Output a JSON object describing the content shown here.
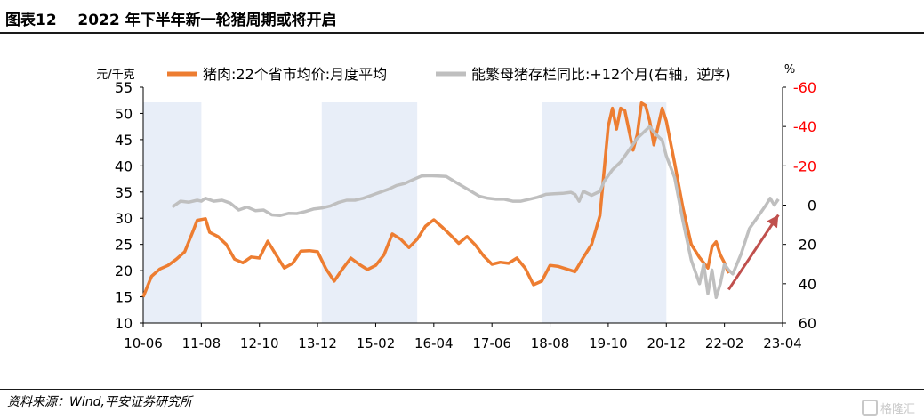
{
  "title": {
    "label": "图表12",
    "text": "2022 年下半年新一轮猪周期或将开启"
  },
  "source": "资料来源：Wind,平安证券研究所",
  "watermark": "格隆汇",
  "colors": {
    "pork": "#ED7D31",
    "sow": "#BFBFBF",
    "shade": "#E8EEF8",
    "arrow": "#C0504D",
    "right_axis": "#FF0000"
  },
  "chart_data": {
    "type": "line",
    "left_axis": {
      "unit": "元/千克",
      "ylim": [
        10,
        55
      ],
      "ticks": [
        10,
        15,
        20,
        25,
        30,
        35,
        40,
        45,
        50,
        55
      ]
    },
    "right_axis": {
      "unit": "%",
      "reversed": true,
      "ylim": [
        -60,
        60
      ],
      "ticks": [
        -60,
        -40,
        -20,
        0,
        20,
        40,
        60
      ],
      "tick_labels": [
        "-60",
        "-40",
        "-20",
        "0",
        "20",
        "40",
        "60"
      ]
    },
    "x_range": [
      "2010-06",
      "2023-04"
    ],
    "x_tick_labels": [
      "10-06",
      "11-08",
      "12-10",
      "13-12",
      "15-02",
      "16-04",
      "17-06",
      "18-08",
      "19-10",
      "20-12",
      "22-02",
      "23-04"
    ],
    "shaded_periods": [
      [
        "2010-06",
        "2011-08"
      ],
      [
        "2014-01",
        "2015-12"
      ],
      [
        "2018-06",
        "2020-12"
      ]
    ],
    "arrow": {
      "from": [
        "2022-03",
        43
      ],
      "to": [
        "2023-03",
        5
      ]
    },
    "series": [
      {
        "name": "猪肉:22个省市均价:月度平均",
        "axis": "left",
        "points": [
          [
            "2010-06",
            15.0
          ],
          [
            "2010-08",
            18.9
          ],
          [
            "2010-10",
            20.3
          ],
          [
            "2010-12",
            21.0
          ],
          [
            "2011-02",
            22.2
          ],
          [
            "2011-04",
            23.6
          ],
          [
            "2011-06",
            27.5
          ],
          [
            "2011-07",
            29.6
          ],
          [
            "2011-09",
            29.9
          ],
          [
            "2011-10",
            27.3
          ],
          [
            "2011-12",
            26.5
          ],
          [
            "2012-02",
            25.0
          ],
          [
            "2012-04",
            22.2
          ],
          [
            "2012-06",
            21.5
          ],
          [
            "2012-08",
            22.6
          ],
          [
            "2012-10",
            22.4
          ],
          [
            "2012-12",
            25.6
          ],
          [
            "2013-02",
            23.0
          ],
          [
            "2013-04",
            20.5
          ],
          [
            "2013-06",
            21.4
          ],
          [
            "2013-08",
            23.7
          ],
          [
            "2013-10",
            23.8
          ],
          [
            "2013-12",
            23.6
          ],
          [
            "2014-02",
            20.4
          ],
          [
            "2014-04",
            18.0
          ],
          [
            "2014-06",
            20.3
          ],
          [
            "2014-08",
            22.4
          ],
          [
            "2014-10",
            21.2
          ],
          [
            "2014-12",
            20.2
          ],
          [
            "2015-02",
            21.0
          ],
          [
            "2015-04",
            23.0
          ],
          [
            "2015-06",
            27.0
          ],
          [
            "2015-08",
            26.0
          ],
          [
            "2015-10",
            24.4
          ],
          [
            "2015-12",
            26.0
          ],
          [
            "2016-02",
            28.5
          ],
          [
            "2016-04",
            29.7
          ],
          [
            "2016-06",
            28.3
          ],
          [
            "2016-08",
            26.8
          ],
          [
            "2016-10",
            25.2
          ],
          [
            "2016-12",
            26.5
          ],
          [
            "2017-02",
            24.9
          ],
          [
            "2017-04",
            22.8
          ],
          [
            "2017-06",
            21.2
          ],
          [
            "2017-08",
            21.6
          ],
          [
            "2017-10",
            21.4
          ],
          [
            "2017-12",
            22.4
          ],
          [
            "2018-02",
            20.5
          ],
          [
            "2018-04",
            17.3
          ],
          [
            "2018-06",
            18.0
          ],
          [
            "2018-08",
            21.0
          ],
          [
            "2018-10",
            20.8
          ],
          [
            "2018-12",
            20.3
          ],
          [
            "2019-02",
            19.8
          ],
          [
            "2019-04",
            22.5
          ],
          [
            "2019-06",
            25.0
          ],
          [
            "2019-08",
            30.5
          ],
          [
            "2019-10",
            47.5
          ],
          [
            "2019-11",
            51.0
          ],
          [
            "2019-12",
            47.0
          ],
          [
            "2020-01",
            51.0
          ],
          [
            "2020-02",
            50.5
          ],
          [
            "2020-04",
            43.0
          ],
          [
            "2020-05",
            46.0
          ],
          [
            "2020-06",
            52.0
          ],
          [
            "2020-07",
            51.5
          ],
          [
            "2020-08",
            48.5
          ],
          [
            "2020-09",
            44.0
          ],
          [
            "2020-11",
            51.0
          ],
          [
            "2020-12",
            48.5
          ],
          [
            "2021-02",
            40.5
          ],
          [
            "2021-04",
            32.0
          ],
          [
            "2021-06",
            25.0
          ],
          [
            "2021-08",
            22.5
          ],
          [
            "2021-10",
            20.5
          ],
          [
            "2021-11",
            24.5
          ],
          [
            "2021-12",
            25.5
          ],
          [
            "2022-01",
            23.0
          ],
          [
            "2022-02",
            21.5
          ],
          [
            "2022-03",
            19.5
          ]
        ]
      },
      {
        "name": "能繁母猪存栏同比:+12个月(右轴，逆序)",
        "axis": "right",
        "points": [
          [
            "2011-01",
            1.0
          ],
          [
            "2011-03",
            -2.0
          ],
          [
            "2011-05",
            -1.5
          ],
          [
            "2011-07",
            -2.5
          ],
          [
            "2011-08",
            -2.0
          ],
          [
            "2011-09",
            -3.5
          ],
          [
            "2011-11",
            -2.0
          ],
          [
            "2012-01",
            -2.5
          ],
          [
            "2012-03",
            -1.0
          ],
          [
            "2012-05",
            2.5
          ],
          [
            "2012-07",
            1.0
          ],
          [
            "2012-09",
            2.8
          ],
          [
            "2012-11",
            2.5
          ],
          [
            "2013-01",
            5.0
          ],
          [
            "2013-03",
            5.3
          ],
          [
            "2013-05",
            4.2
          ],
          [
            "2013-07",
            4.3
          ],
          [
            "2013-09",
            3.3
          ],
          [
            "2013-11",
            2.0
          ],
          [
            "2014-01",
            1.5
          ],
          [
            "2014-03",
            0.5
          ],
          [
            "2014-05",
            -1.3
          ],
          [
            "2014-07",
            -2.5
          ],
          [
            "2014-09",
            -2.5
          ],
          [
            "2014-11",
            -3.5
          ],
          [
            "2015-01",
            -5.0
          ],
          [
            "2015-03",
            -6.5
          ],
          [
            "2015-05",
            -8.0
          ],
          [
            "2015-07",
            -10.0
          ],
          [
            "2015-09",
            -11.0
          ],
          [
            "2015-11",
            -13.0
          ],
          [
            "2016-01",
            -14.8
          ],
          [
            "2016-03",
            -15.0
          ],
          [
            "2016-05",
            -14.8
          ],
          [
            "2016-07",
            -14.6
          ],
          [
            "2016-09",
            -12.0
          ],
          [
            "2016-11",
            -9.5
          ],
          [
            "2017-01",
            -7.0
          ],
          [
            "2017-03",
            -4.5
          ],
          [
            "2017-05",
            -3.5
          ],
          [
            "2017-07",
            -3.0
          ],
          [
            "2017-09",
            -3.0
          ],
          [
            "2017-11",
            -2.0
          ],
          [
            "2018-01",
            -2.0
          ],
          [
            "2018-03",
            -3.0
          ],
          [
            "2018-05",
            -4.0
          ],
          [
            "2018-07",
            -5.5
          ],
          [
            "2018-09",
            -5.8
          ],
          [
            "2018-11",
            -6.0
          ],
          [
            "2019-01",
            -6.5
          ],
          [
            "2019-02",
            -5.5
          ],
          [
            "2019-03",
            -2.0
          ],
          [
            "2019-04",
            -7.0
          ],
          [
            "2019-06",
            -5.0
          ],
          [
            "2019-08",
            -7.0
          ],
          [
            "2019-09",
            -12.0
          ],
          [
            "2019-11",
            -18.0
          ],
          [
            "2020-01",
            -22.0
          ],
          [
            "2020-03",
            -28.0
          ],
          [
            "2020-05",
            -34.0
          ],
          [
            "2020-07",
            -38.0
          ],
          [
            "2020-08",
            -40.0
          ],
          [
            "2020-09",
            -37.0
          ],
          [
            "2020-10",
            -35.0
          ],
          [
            "2020-11",
            -33.0
          ],
          [
            "2020-12",
            -25.0
          ],
          [
            "2021-02",
            -14.0
          ],
          [
            "2021-04",
            8.0
          ],
          [
            "2021-06",
            28.0
          ],
          [
            "2021-08",
            40.0
          ],
          [
            "2021-09",
            30.0
          ],
          [
            "2021-10",
            45.0
          ],
          [
            "2021-11",
            33.0
          ],
          [
            "2021-12",
            47.0
          ],
          [
            "2022-01",
            40.0
          ],
          [
            "2022-02",
            30.0
          ],
          [
            "2022-03",
            33.0
          ],
          [
            "2022-04",
            35.0
          ],
          [
            "2022-06",
            25.0
          ],
          [
            "2022-08",
            12.0
          ],
          [
            "2022-10",
            6.0
          ],
          [
            "2022-12",
            0.0
          ],
          [
            "2023-01",
            -3.5
          ],
          [
            "2023-02",
            0.0
          ],
          [
            "2023-03",
            -3.0
          ]
        ]
      }
    ]
  }
}
